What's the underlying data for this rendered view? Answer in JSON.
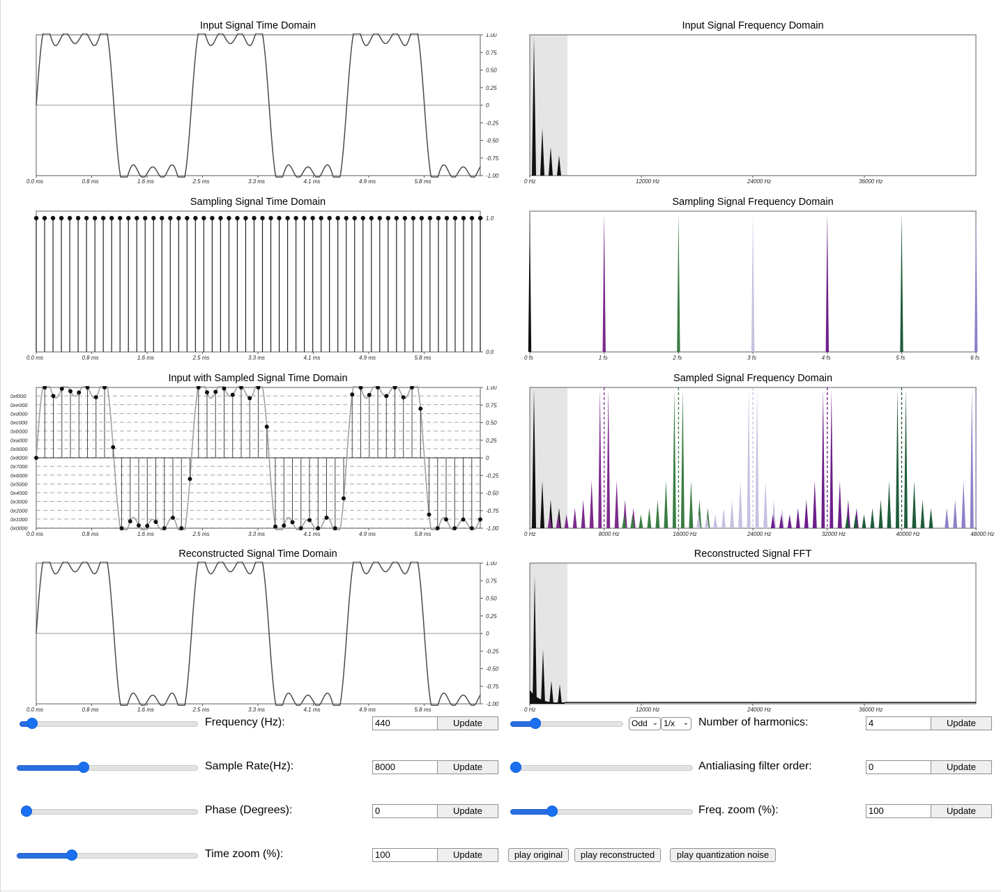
{
  "plots": {
    "input_time": {
      "title": "Input Signal Time Domain",
      "xticks": [
        "0.0 ms",
        "0.8 ms",
        "1.6 ms",
        "2.5 ms",
        "3.3 ms",
        "4.1 ms",
        "4.9 ms",
        "5.8 ms"
      ],
      "yticks": [
        "1.00",
        "0.75",
        "0.50",
        "0.25",
        "0",
        "-0.25",
        "-0.50",
        "-0.75",
        "-1.00"
      ]
    },
    "input_freq": {
      "title": "Input Signal Frequency Domain",
      "xticks": [
        "0 Hz",
        "12000 Hz",
        "24000 Hz",
        "36000 Hz"
      ]
    },
    "sampling_time": {
      "title": "Sampling Signal Time Domain",
      "xticks": [
        "0.0 ms",
        "0.8 ms",
        "1.6 ms",
        "2.5 ms",
        "3.3 ms",
        "4.1 ms",
        "4.9 ms",
        "5.8 ms"
      ],
      "yticks": [
        "1.0",
        "0.0"
      ]
    },
    "sampling_freq": {
      "title": "Sampling Signal Frequency Domain",
      "xticks": [
        "0 fs",
        "1 fs",
        "2 fs",
        "3 fs",
        "4 fs",
        "5 fs",
        "6 fs"
      ]
    },
    "sampled_time": {
      "title": "Input with Sampled Signal Time Domain",
      "xticks": [
        "0.0 ms",
        "0.8 ms",
        "1.6 ms",
        "2.5 ms",
        "3.3 ms",
        "4.1 ms",
        "4.9 ms",
        "5.8 ms"
      ],
      "yticks": [
        "1.00",
        "0.75",
        "0.50",
        "0.25",
        "0",
        "-0.25",
        "-0.50",
        "-0.75",
        "-1.00"
      ],
      "hex_labels": [
        "0xf000",
        "0xe000",
        "0xd000",
        "0xc000",
        "0xb000",
        "0xa000",
        "0x9000",
        "0x8000",
        "0x7000",
        "0x6000",
        "0x5000",
        "0x4000",
        "0x3000",
        "0x2000",
        "0x1000",
        "0x0000"
      ]
    },
    "sampled_freq": {
      "title": "Sampled Signal Frequency Domain",
      "xticks": [
        "0 Hz",
        "8000 Hz",
        "16000 Hz",
        "24000 Hz",
        "32000 Hz",
        "40000 Hz",
        "48000 Hz"
      ]
    },
    "recon_time": {
      "title": "Reconstructed Signal Time Domain",
      "xticks": [
        "0.0 ms",
        "0.8 ms",
        "1.6 ms",
        "2.5 ms",
        "3.3 ms",
        "4.1 ms",
        "4.9 ms",
        "5.8 ms"
      ],
      "yticks": [
        "1.00",
        "0.75",
        "0.50",
        "0.25",
        "0",
        "-0.25",
        "-0.50",
        "-0.75",
        "-1.00"
      ]
    },
    "recon_freq": {
      "title": "Reconstructed Signal FFT",
      "xticks": [
        "0 Hz",
        "12000 Hz",
        "24000 Hz",
        "36000 Hz"
      ]
    }
  },
  "controls": {
    "frequency": {
      "label": "Frequency (Hz):",
      "value": "440",
      "button": "Update",
      "slider": 0.04
    },
    "sample_rate": {
      "label": "Sample Rate(Hz):",
      "value": "8000",
      "button": "Update",
      "slider": 0.36
    },
    "phase": {
      "label": "Phase (Degrees):",
      "value": "0",
      "button": "Update",
      "slider": 0.0
    },
    "time_zoom": {
      "label": "Time zoom (%):",
      "value": "100",
      "button": "Update",
      "slider": 0.29
    },
    "harmonics": {
      "label": "Number of harmonics:",
      "value": "4",
      "button": "Update",
      "slider": 0.19,
      "select_parity": "Odd",
      "select_amplitude": "1/x"
    },
    "antialias": {
      "label": "Antialiasing filter order:",
      "value": "0",
      "button": "Update",
      "slider": 0.0
    },
    "freq_zoom": {
      "label": "Freq. zoom (%):",
      "value": "100",
      "button": "Update",
      "slider": 0.21
    },
    "play_original": "play original",
    "play_reconstructed": "play reconstructed",
    "play_quantization": "play quantization noise"
  },
  "colors": {
    "trace": "#4a4a4a",
    "shade": "#e5e5e5",
    "slider_accent": "#1a70f0",
    "image_1": "#7c2a8c",
    "image_2": "#3a7d44",
    "image_3": "#c8c0e0",
    "image_4": "#6d1f8a",
    "image_5": "#1f5c3a",
    "image_6": "#9080c8"
  }
}
